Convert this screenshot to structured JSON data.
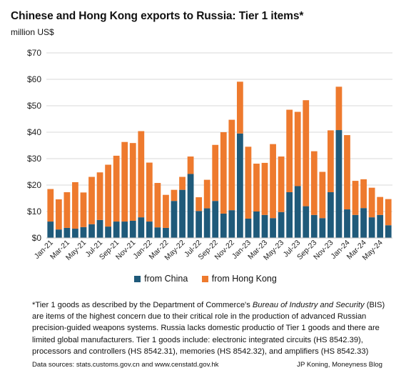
{
  "title": "Chinese and Hong Kong exports to Russia: Tier 1 items*",
  "unit_label": "million US$",
  "legend": {
    "china": "from China",
    "hongkong": "from Hong Kong"
  },
  "colors": {
    "china": "#1f5a7a",
    "hongkong": "#ee7a2e",
    "grid": "#d9d9d9",
    "axis": "#bfbfbf"
  },
  "footnote": {
    "prefix": "*Tier 1 goods as described by the Department of Commerce's ",
    "italic": "Bureau of Industry and Security",
    "suffix": " (BIS) are items of the highest concern due to their critical role in the production of advanced Russian precision-guided weapons systems.  Russia lacks  domestic productio of Tier 1 goods and there are limited global manufacturers. Tier 1 goods include: electronic integrated circuits (HS 8542.39), processors and controllers (HS 8542.31), memories (HS 8542.32), and amplifiers (HS 8542.33)"
  },
  "source": "Data sources: stats.customs.gov.cn and www.censtatd.gov.hk",
  "credit": "JP Koning, Moneyness Blog",
  "chart_data": {
    "type": "bar",
    "stacked": true,
    "title": "Chinese and Hong Kong exports to Russia: Tier 1 items*",
    "ylabel": "million US$",
    "ylim": [
      0,
      70
    ],
    "yticks": [
      0,
      10,
      20,
      30,
      40,
      50,
      60,
      70
    ],
    "ytick_labels": [
      "$0",
      "$10",
      "$20",
      "$30",
      "$40",
      "$50",
      "$60",
      "$70"
    ],
    "grid": true,
    "legend_position": "bottom",
    "categories": [
      "Jan-21",
      "Feb-21",
      "Mar-21",
      "Apr-21",
      "May-21",
      "Jun-21",
      "Jul-21",
      "Aug-21",
      "Sep-21",
      "Oct-21",
      "Nov-21",
      "Dec-21",
      "Jan-22",
      "Feb-22",
      "Mar-22",
      "Apr-22",
      "May-22",
      "Jun-22",
      "Jul-22",
      "Aug-22",
      "Sep-22",
      "Oct-22",
      "Nov-22",
      "Dec-22",
      "Jan-23",
      "Feb-23",
      "Mar-23",
      "Apr-23",
      "May-23",
      "Jun-23",
      "Jul-23",
      "Aug-23",
      "Sep-23",
      "Oct-23",
      "Nov-23",
      "Dec-23",
      "Jan-24",
      "Feb-24",
      "Mar-24",
      "Apr-24",
      "May-24",
      "Jun-24"
    ],
    "xtick_labels": [
      "Jan-21",
      "Mar-21",
      "May-21",
      "Jul-21",
      "Sep-21",
      "Nov-21",
      "Jan-22",
      "Mar-22",
      "May-22",
      "Jul-22",
      "Sep-22",
      "Nov-22",
      "Jan-23",
      "Mar-23",
      "May-23",
      "Jul-23",
      "Sep-23",
      "Nov-23",
      "Jan-24",
      "Mar-24",
      "May-24"
    ],
    "series": [
      {
        "name": "from China",
        "values": [
          6.2,
          3.2,
          3.8,
          3.5,
          4.1,
          5.2,
          6.8,
          4.3,
          6.2,
          6.2,
          6.5,
          7.8,
          6.2,
          4.0,
          3.8,
          14.0,
          18.2,
          24.2,
          10.2,
          11.2,
          14.0,
          9.2,
          10.5,
          39.5,
          7.3,
          10.0,
          8.7,
          7.5,
          9.8,
          17.3,
          19.6,
          12.0,
          8.7,
          7.5,
          17.3,
          40.8,
          10.8,
          8.7,
          11.3,
          7.8,
          8.7,
          4.8
        ]
      },
      {
        "name": "from Hong Kong",
        "values": [
          12.3,
          11.4,
          13.5,
          17.6,
          13.1,
          17.9,
          18.0,
          23.4,
          24.9,
          30.1,
          29.4,
          32.6,
          22.3,
          16.8,
          12.5,
          4.2,
          4.9,
          6.6,
          5.2,
          10.8,
          21.2,
          30.8,
          34.2,
          19.6,
          27.2,
          18.1,
          19.7,
          28.0,
          21.0,
          31.2,
          28.1,
          40.1,
          24.1,
          17.5,
          23.4,
          16.4,
          28.1,
          12.9,
          10.9,
          11.2,
          6.8,
          9.9
        ]
      }
    ]
  }
}
